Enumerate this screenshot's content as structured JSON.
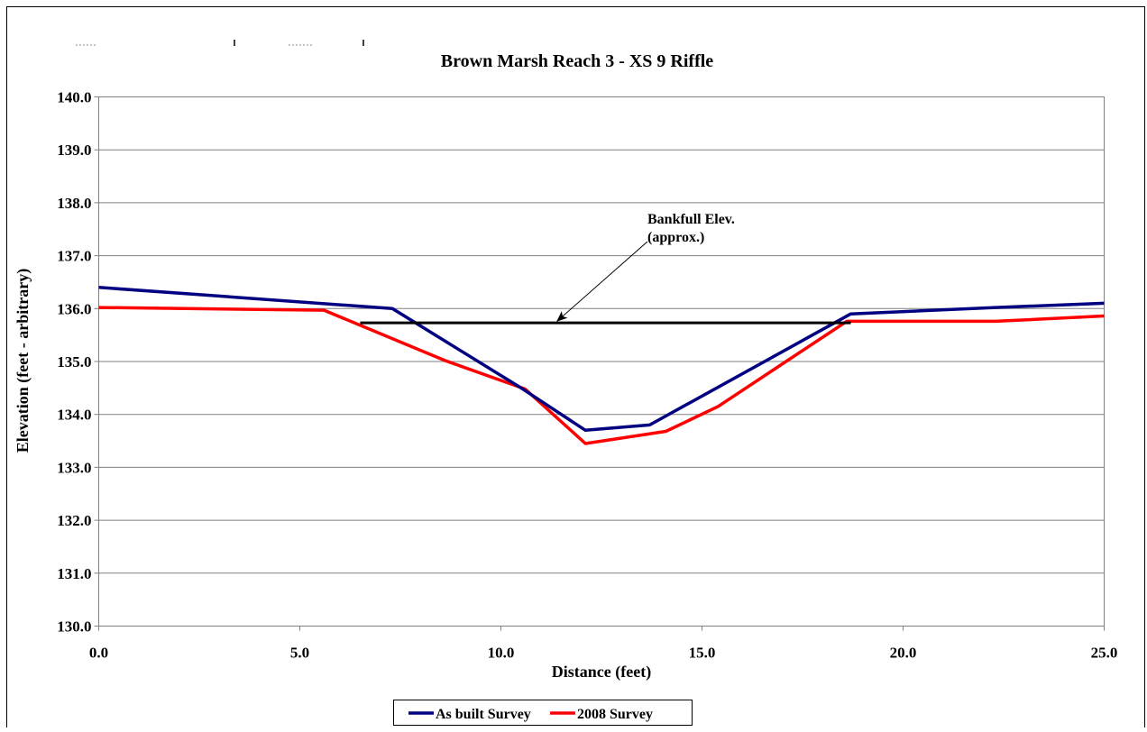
{
  "chart_data": {
    "type": "line",
    "title": "Brown Marsh Reach 3 - XS 9 Riffle",
    "xlabel": "Distance (feet)",
    "ylabel": "Elevation (feet - arbitrary)",
    "xlim": [
      0,
      25
    ],
    "ylim": [
      130,
      140
    ],
    "x_ticks": [
      0,
      5,
      10,
      15,
      20,
      25
    ],
    "y_ticks": [
      130,
      131,
      132,
      133,
      134,
      135,
      136,
      137,
      138,
      139,
      140
    ],
    "x_tick_labels": [
      "0.0",
      "5.0",
      "10.0",
      "15.0",
      "20.0",
      "25.0"
    ],
    "y_tick_labels": [
      "130.0",
      "131.0",
      "132.0",
      "133.0",
      "134.0",
      "135.0",
      "136.0",
      "137.0",
      "138.0",
      "139.0",
      "140.0"
    ],
    "grid": "horizontal",
    "legend_position": "bottom",
    "series": [
      {
        "name": "As built Survey",
        "color": "#000080",
        "points": [
          [
            0,
            136.4
          ],
          [
            7.3,
            136.0
          ],
          [
            10.5,
            134.5
          ],
          [
            12.1,
            133.7
          ],
          [
            13.7,
            133.8
          ],
          [
            18.7,
            135.9
          ],
          [
            22.3,
            136.02
          ],
          [
            25,
            136.1
          ]
        ]
      },
      {
        "name": "2008 Survey",
        "color": "#ff0000",
        "points": [
          [
            0,
            136.02
          ],
          [
            5.6,
            135.97
          ],
          [
            8.6,
            135.02
          ],
          [
            10.6,
            134.48
          ],
          [
            12.1,
            133.45
          ],
          [
            14.1,
            133.68
          ],
          [
            15.4,
            134.15
          ],
          [
            18.6,
            135.76
          ],
          [
            22.3,
            135.76
          ],
          [
            25,
            135.86
          ]
        ]
      }
    ],
    "reference_line": {
      "color": "#000000",
      "y": 135.73,
      "x_start": 6.5,
      "x_end": 18.7
    },
    "annotations": [
      {
        "text_lines": [
          "Bankfull Elev.",
          "(approx.)"
        ],
        "points_to": [
          11.4,
          135.73
        ]
      }
    ]
  }
}
